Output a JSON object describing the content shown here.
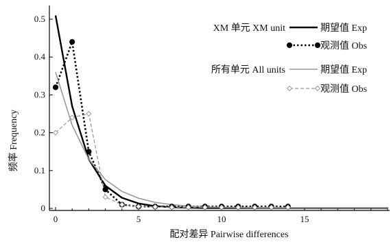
{
  "chart_data": {
    "type": "line",
    "title": "",
    "xlabel": "配对差异 Pairwise differences",
    "ylabel": "频率 Frequency",
    "xlim": [
      0,
      20
    ],
    "ylim": [
      0,
      0.52
    ],
    "x_ticks": [
      0,
      5,
      10,
      15
    ],
    "y_ticks": [
      0,
      0.1,
      0.2,
      0.3,
      0.4,
      0.5
    ],
    "y_tick_labels": [
      "0",
      "0.1",
      "0.2",
      "0.3",
      "0.4",
      "0.5"
    ],
    "grid": false,
    "legend_position": "top-right",
    "legend_groups": [
      {
        "label": "XM 单元 XM unit",
        "entries": [
          "期望值 Exp",
          "观测值 Obs"
        ]
      },
      {
        "label": "所有单元 All units",
        "entries": [
          "期望值 Exp",
          "观测值 Obs"
        ]
      }
    ],
    "series": [
      {
        "name": "期望值 Exp",
        "group": "XM 单元 XM unit",
        "color": "#000000",
        "line": "solid",
        "width": 2.4,
        "marker": "none",
        "x": [
          0,
          1,
          2,
          3,
          4,
          5,
          6,
          7,
          8,
          9,
          10,
          12,
          14,
          16,
          18,
          20
        ],
        "y": [
          0.51,
          0.27,
          0.13,
          0.06,
          0.028,
          0.013,
          0.006,
          0.003,
          0.002,
          0.001,
          0.001,
          0.001,
          0.001,
          0.001,
          0.001,
          0.001
        ]
      },
      {
        "name": "观测值 Obs",
        "group": "XM 单元 XM unit",
        "color": "#000000",
        "line": "dotted",
        "width": 2.6,
        "marker": "filled-circle",
        "x": [
          0,
          1,
          2,
          3,
          4,
          5,
          6,
          7,
          8,
          9,
          10,
          11,
          12,
          13,
          14
        ],
        "y": [
          0.32,
          0.44,
          0.15,
          0.05,
          0.01,
          0.005,
          0.005,
          0.005,
          0.005,
          0.005,
          0.005,
          0.005,
          0.005,
          0.005,
          0.005
        ]
      },
      {
        "name": "期望值 Exp",
        "group": "所有单元 All units",
        "color": "#999999",
        "line": "solid",
        "width": 1.6,
        "marker": "none",
        "x": [
          0,
          1,
          2,
          3,
          4,
          5,
          6,
          7,
          8,
          9,
          10,
          12,
          14,
          16,
          18,
          20
        ],
        "y": [
          0.36,
          0.22,
          0.13,
          0.076,
          0.045,
          0.027,
          0.016,
          0.01,
          0.006,
          0.004,
          0.003,
          0.002,
          0.002,
          0.002,
          0.002,
          0.002
        ]
      },
      {
        "name": "观测值 Obs",
        "group": "所有单元 All units",
        "color": "#999999",
        "line": "dashed",
        "width": 1.3,
        "marker": "open-diamond",
        "x": [
          0,
          1,
          2,
          3,
          4,
          5,
          6,
          7,
          8,
          9,
          10,
          11,
          12,
          13,
          14
        ],
        "y": [
          0.2,
          0.24,
          0.25,
          0.03,
          0.01,
          0.005,
          0.004,
          0.003,
          0.003,
          0.003,
          0.003,
          0.003,
          0.003,
          0.003,
          0.003
        ]
      }
    ]
  }
}
